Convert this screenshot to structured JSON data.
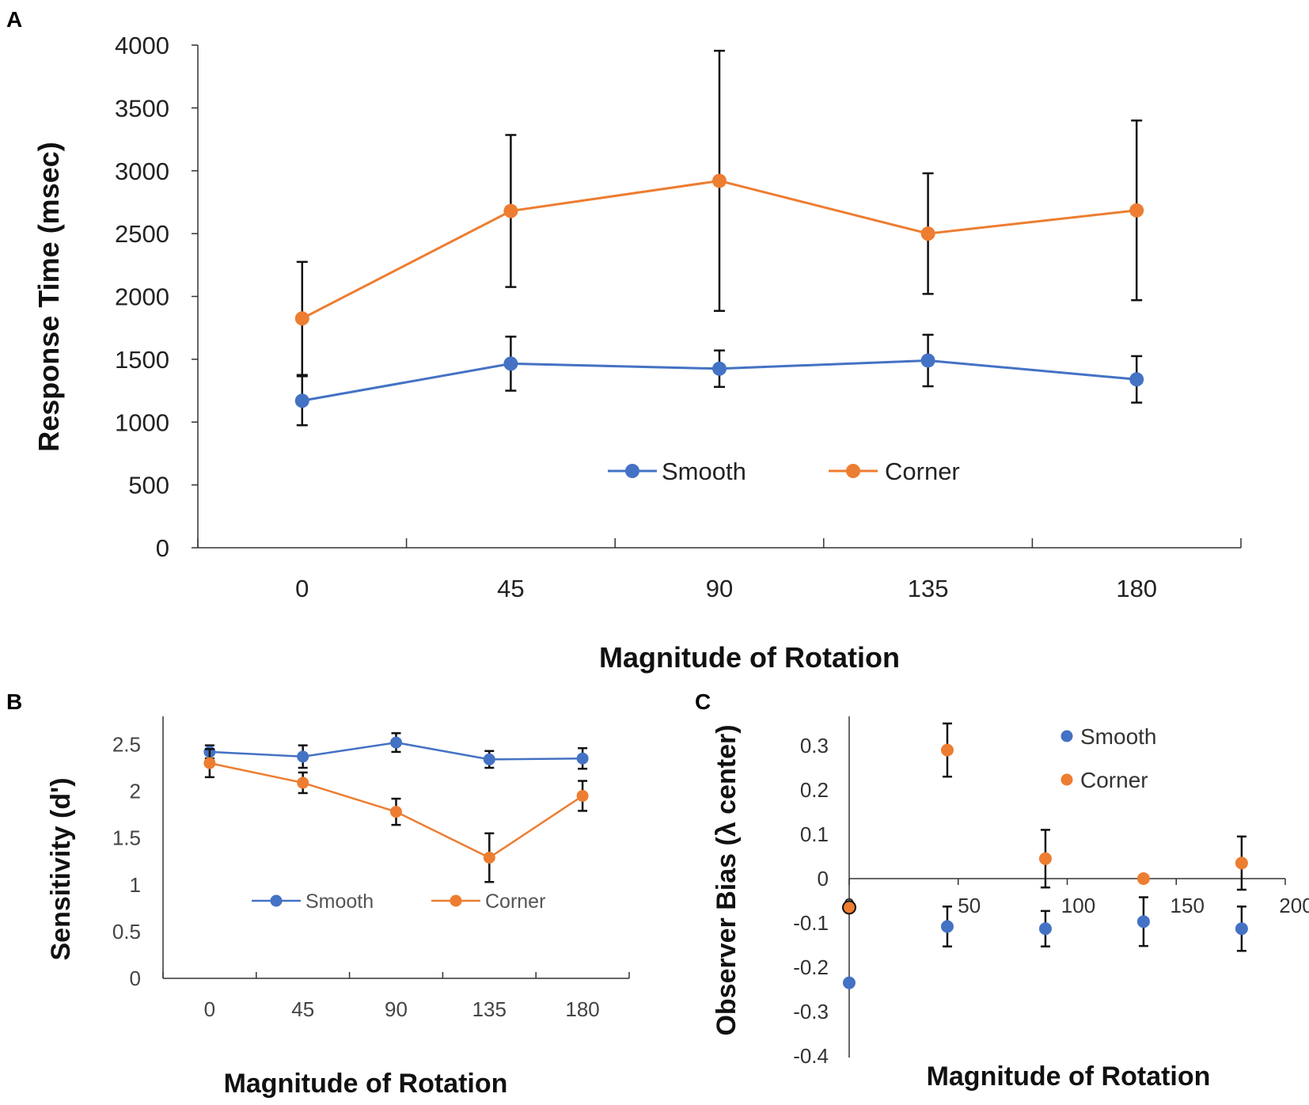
{
  "colors": {
    "smooth": "#4472C4",
    "corner": "#ED7D31",
    "axis": "#333333",
    "error": "#111111"
  },
  "chart_data": [
    {
      "panel": "A",
      "type": "line",
      "xlabel": "Magnitude of Rotation",
      "ylabel": "Response Time (msec)",
      "categories": [
        "0",
        "45",
        "90",
        "135",
        "180"
      ],
      "ylim": [
        0,
        4000
      ],
      "yticks": [
        "0",
        "500",
        "1000",
        "1500",
        "2000",
        "2500",
        "3000",
        "3500",
        "4000"
      ],
      "legend_position": "center",
      "series": [
        {
          "name": "Smooth",
          "values": [
            1170,
            1465,
            1425,
            1490,
            1340
          ],
          "errors": [
            195,
            215,
            145,
            205,
            185
          ]
        },
        {
          "name": "Corner",
          "values": [
            1825,
            2680,
            2920,
            2500,
            2685
          ],
          "errors": [
            450,
            605,
            1035,
            480,
            715
          ]
        }
      ]
    },
    {
      "panel": "B",
      "type": "line",
      "xlabel": "Magnitude of Rotation",
      "ylabel": "Sensitivity (d')",
      "categories": [
        "0",
        "45",
        "90",
        "135",
        "180"
      ],
      "ylim": [
        0,
        2.8
      ],
      "yticks": [
        "0",
        "0.5",
        "1",
        "1.5",
        "2",
        "2.5"
      ],
      "legend_position": "lower-center",
      "series": [
        {
          "name": "Smooth",
          "values": [
            2.42,
            2.37,
            2.52,
            2.34,
            2.35
          ],
          "errors": [
            0.07,
            0.12,
            0.1,
            0.09,
            0.11
          ]
        },
        {
          "name": "Corner",
          "values": [
            2.3,
            2.09,
            1.78,
            1.29,
            1.95
          ],
          "errors": [
            0.15,
            0.11,
            0.14,
            0.26,
            0.16
          ]
        }
      ]
    },
    {
      "panel": "C",
      "type": "scatter",
      "xlabel": "Magnitude of Rotation",
      "ylabel": "Observer Bias (λ center)",
      "xlim": [
        0,
        200
      ],
      "ylim": [
        -0.4,
        0.35
      ],
      "xticks": [
        "0",
        "50",
        "100",
        "150",
        "200"
      ],
      "yticks": [
        "-0.4",
        "-0.3",
        "-0.2",
        "-0.1",
        "0",
        "0.1",
        "0.2",
        "0.3"
      ],
      "legend_position": "top-right",
      "series": [
        {
          "name": "Smooth",
          "points": [
            {
              "x": 0,
              "y": -0.235,
              "err": 0
            },
            {
              "x": 45,
              "y": -0.108,
              "err": 0.045
            },
            {
              "x": 90,
              "y": -0.113,
              "err": 0.04
            },
            {
              "x": 135,
              "y": -0.097,
              "err": 0.055
            },
            {
              "x": 180,
              "y": -0.113,
              "err": 0.05
            }
          ]
        },
        {
          "name": "Corner",
          "points": [
            {
              "x": 0,
              "y": -0.065,
              "err": 0
            },
            {
              "x": 45,
              "y": 0.29,
              "err": 0.06
            },
            {
              "x": 90,
              "y": 0.045,
              "err": 0.065
            },
            {
              "x": 135,
              "y": 0.0,
              "err": 0
            },
            {
              "x": 180,
              "y": 0.035,
              "err": 0.06
            }
          ]
        }
      ]
    }
  ]
}
